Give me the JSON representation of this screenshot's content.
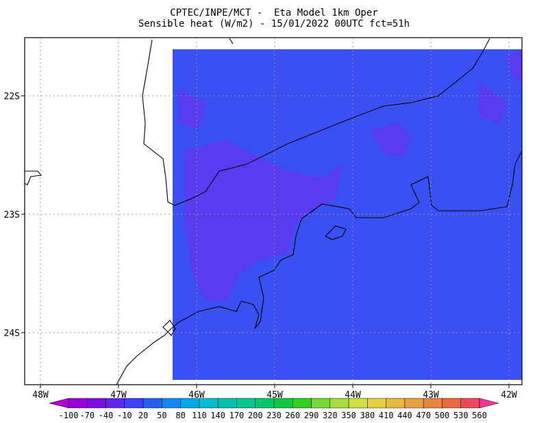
{
  "header": {
    "title": "CPTEC/INPE/MCT -  Eta Model 1km Oper",
    "subtitle": "Sensible heat (W/m2) - 15/01/2022 00UTC fct=51h"
  },
  "map": {
    "lon_labels": [
      "48W",
      "47W",
      "46W",
      "45W",
      "44W",
      "43W",
      "42W"
    ],
    "lat_labels": [
      "22S",
      "23S",
      "24S"
    ]
  },
  "colorbar": {
    "levels": [
      -100,
      -70,
      -40,
      -10,
      20,
      50,
      80,
      110,
      140,
      170,
      200,
      230,
      260,
      290,
      320,
      350,
      380,
      410,
      440,
      470,
      500,
      530,
      560
    ],
    "colors": [
      "#b000d0",
      "#9800d8",
      "#7c10e0",
      "#6028ec",
      "#4040f4",
      "#2860f4",
      "#1488f0",
      "#00a8e8",
      "#00bcd0",
      "#00c4b0",
      "#00c890",
      "#00c86c",
      "#10c840",
      "#30d020",
      "#78d838",
      "#a8dc40",
      "#d0e040",
      "#e4d040",
      "#e8b840",
      "#e8a040",
      "#e88440",
      "#e86840",
      "#e84c58",
      "#f03890"
    ]
  }
}
